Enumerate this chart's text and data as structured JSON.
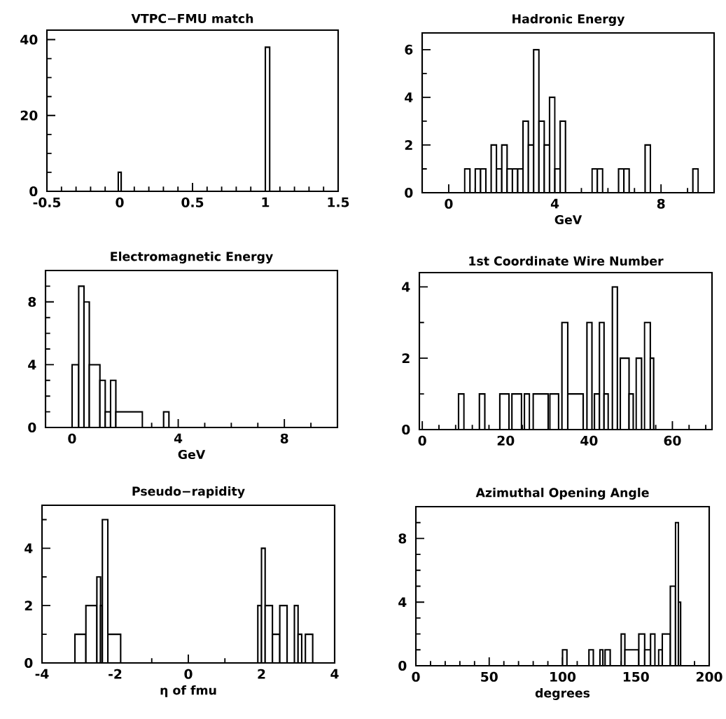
{
  "chart_data": [
    {
      "type": "histogram",
      "title": "VTPC−FMU match",
      "color": "#000000",
      "bins": [
        -0.01,
        0.01,
        1.0,
        1.03
      ],
      "values": [
        5,
        0,
        38
      ],
      "xlim": [
        -0.5,
        1.5
      ],
      "ylim": [
        0,
        42.5
      ],
      "xticks": [
        -0.5,
        {
          "value": -0.4,
          "label": null
        },
        {
          "value": -0.3,
          "label": null
        },
        {
          "value": -0.2,
          "label": null
        },
        {
          "value": -0.1,
          "label": null
        },
        0,
        {
          "value": 0.1,
          "label": null
        },
        {
          "value": 0.2,
          "label": null
        },
        {
          "value": 0.3,
          "label": null
        },
        {
          "value": 0.4,
          "label": null
        },
        0.5,
        {
          "value": 0.6,
          "label": null
        },
        {
          "value": 0.7,
          "label": null
        },
        {
          "value": 0.8,
          "label": null
        },
        {
          "value": 0.9,
          "label": null
        },
        1,
        {
          "value": 1.1,
          "label": null
        },
        {
          "value": 1.2,
          "label": null
        },
        {
          "value": 1.3,
          "label": null
        },
        {
          "value": 1.4,
          "label": null
        },
        1.5
      ],
      "yticks": [
        0,
        {
          "value": 5,
          "label": null
        },
        {
          "value": 10,
          "label": null
        },
        {
          "value": 15,
          "label": null
        },
        20,
        {
          "value": 25,
          "label": null
        },
        {
          "value": 30,
          "label": null
        },
        {
          "value": 35,
          "label": null
        },
        40
      ]
    },
    {
      "type": "histogram",
      "title": "Hadronic Energy",
      "xlabel": "GeV",
      "color": "#000000",
      "bins": [
        0.6,
        0.8,
        1.0,
        1.2,
        1.4,
        1.6,
        1.8,
        2.0,
        2.2,
        2.4,
        2.6,
        2.8,
        3.0,
        3.2,
        3.4,
        3.6,
        3.8,
        4.0,
        4.2,
        4.4,
        5.4,
        5.6,
        5.8,
        6.4,
        6.6,
        6.8,
        7.4,
        7.6,
        9.2,
        9.4
      ],
      "values": [
        1,
        0,
        1,
        1,
        0,
        2,
        1,
        2,
        1,
        1,
        1,
        3,
        2,
        6,
        3,
        2,
        4,
        1,
        3,
        0,
        1,
        1,
        0,
        1,
        1,
        0,
        2,
        0,
        1
      ],
      "xlim": [
        -1,
        10
      ],
      "ylim": [
        0,
        6.7
      ],
      "xticks": [
        0,
        {
          "value": 1,
          "label": null
        },
        {
          "value": 2,
          "label": null
        },
        {
          "value": 3,
          "label": null
        },
        4,
        {
          "value": 5,
          "label": null
        },
        {
          "value": 6,
          "label": null
        },
        {
          "value": 7,
          "label": null
        },
        8,
        {
          "value": 9,
          "label": null
        }
      ],
      "yticks": [
        0,
        {
          "value": 1,
          "label": null
        },
        2,
        {
          "value": 3,
          "label": null
        },
        4,
        {
          "value": 5,
          "label": null
        },
        6
      ]
    },
    {
      "type": "histogram",
      "title": "Electromagnetic Energy",
      "xlabel": "GeV",
      "color": "#000000",
      "bins": [
        0,
        0.25,
        0.45,
        0.65,
        1.05,
        1.25,
        1.45,
        1.65,
        2.65,
        3.45,
        3.65
      ],
      "values": [
        4,
        9,
        8,
        4,
        3,
        1,
        3,
        1,
        0,
        1
      ],
      "xlim": [
        -1,
        10
      ],
      "ylim": [
        0,
        10
      ],
      "xticks": [
        0,
        {
          "value": 1,
          "label": null
        },
        {
          "value": 2,
          "label": null
        },
        {
          "value": 3,
          "label": null
        },
        4,
        {
          "value": 5,
          "label": null
        },
        {
          "value": 6,
          "label": null
        },
        {
          "value": 7,
          "label": null
        },
        8,
        {
          "value": 9,
          "label": null
        }
      ],
      "yticks": [
        0,
        {
          "value": 1,
          "label": null
        },
        {
          "value": 2,
          "label": null
        },
        {
          "value": 3,
          "label": null
        },
        4,
        {
          "value": 5,
          "label": null
        },
        {
          "value": 6,
          "label": null
        },
        {
          "value": 7,
          "label": null
        },
        8,
        {
          "value": 9,
          "label": null
        }
      ]
    },
    {
      "type": "histogram",
      "title": "1st Coordinate Wire Number",
      "color": "#000000",
      "bins": [
        8.7,
        10.0,
        13.7,
        15.0,
        18.6,
        20.8,
        21.5,
        23.8,
        24.5,
        25.7,
        26.6,
        30.2,
        30.6,
        32.7,
        33.5,
        34.9,
        38.6,
        39.5,
        40.7,
        41.3,
        42.5,
        43.6,
        44.6,
        45.6,
        46.8,
        47.5,
        49.6,
        50.6,
        51.3,
        52.6,
        53.3,
        54.7,
        55.5
      ],
      "values": [
        1,
        0,
        1,
        0,
        1,
        0,
        1,
        0,
        1,
        0,
        1,
        0,
        1,
        0,
        3,
        1,
        0,
        3,
        0,
        1,
        3,
        1,
        0,
        4,
        0,
        2,
        1,
        0,
        2,
        0,
        3,
        2
      ],
      "xlim": [
        -0.7,
        69.5
      ],
      "ylim": [
        0,
        4.4
      ],
      "xticks": [
        0,
        {
          "value": 4,
          "label": null
        },
        {
          "value": 8,
          "label": null
        },
        {
          "value": 12,
          "label": null
        },
        {
          "value": 16,
          "label": null
        },
        20,
        {
          "value": 24,
          "label": null
        },
        {
          "value": 28,
          "label": null
        },
        {
          "value": 32,
          "label": null
        },
        {
          "value": 36,
          "label": null
        },
        40,
        {
          "value": 44,
          "label": null
        },
        {
          "value": 48,
          "label": null
        },
        {
          "value": 52,
          "label": null
        },
        {
          "value": 56,
          "label": null
        },
        60,
        {
          "value": 64,
          "label": null
        },
        {
          "value": 68,
          "label": null
        }
      ],
      "yticks": [
        0,
        {
          "value": 1,
          "label": null
        },
        2,
        {
          "value": 3,
          "label": null
        },
        4
      ]
    },
    {
      "type": "histogram",
      "title": "Pseudo−rapidity",
      "xlabel": "η of fmu",
      "color": "#000000",
      "bins": [
        -3.1,
        -2.8,
        -2.5,
        -2.4,
        -2.35,
        -2.2,
        -1.85,
        1.9,
        2.0,
        2.1,
        2.3,
        2.5,
        2.7,
        2.9,
        3.0,
        3.1,
        3.2,
        3.4
      ],
      "values": [
        1,
        2,
        3,
        2,
        5,
        1,
        0,
        2,
        4,
        2,
        1,
        2,
        0,
        2,
        1,
        0,
        1
      ],
      "xlim": [
        -4,
        4
      ],
      "ylim": [
        0,
        5.5
      ],
      "xticks": [
        -4,
        {
          "value": -3,
          "label": null
        },
        -2,
        {
          "value": -1,
          "label": null
        },
        0,
        {
          "value": 1,
          "label": null
        },
        2,
        {
          "value": 3,
          "label": null
        },
        4
      ],
      "yticks": [
        0,
        {
          "value": 1,
          "label": null
        },
        2,
        {
          "value": 3,
          "label": null
        },
        4,
        {
          "value": 5,
          "label": null
        }
      ]
    },
    {
      "type": "histogram",
      "title": "Azimuthal Opening Angle",
      "xlabel": "degrees",
      "color": "#000000",
      "bins": [
        100,
        103,
        118,
        121,
        125.5,
        127.5,
        129,
        132.5,
        140,
        142.5,
        152,
        156,
        160,
        163,
        165.5,
        168,
        173.5,
        177,
        179,
        180.5
      ],
      "values": [
        1,
        0,
        1,
        0,
        1,
        0,
        1,
        0,
        2,
        1,
        2,
        1,
        2,
        0,
        1,
        2,
        5,
        9,
        4
      ],
      "xlim": [
        0,
        200
      ],
      "ylim": [
        0,
        10
      ],
      "xticks": [
        0,
        {
          "value": 10,
          "label": null
        },
        {
          "value": 20,
          "label": null
        },
        {
          "value": 30,
          "label": null
        },
        {
          "value": 40,
          "label": null
        },
        50,
        {
          "value": 60,
          "label": null
        },
        {
          "value": 70,
          "label": null
        },
        {
          "value": 80,
          "label": null
        },
        {
          "value": 90,
          "label": null
        },
        100,
        {
          "value": 110,
          "label": null
        },
        {
          "value": 120,
          "label": null
        },
        {
          "value": 130,
          "label": null
        },
        {
          "value": 140,
          "label": null
        },
        150,
        {
          "value": 160,
          "label": null
        },
        {
          "value": 170,
          "label": null
        },
        {
          "value": 180,
          "label": null
        },
        {
          "value": 190,
          "label": null
        },
        200
      ],
      "yticks": [
        0,
        {
          "value": 1,
          "label": null
        },
        {
          "value": 2,
          "label": null
        },
        {
          "value": 3,
          "label": null
        },
        4,
        {
          "value": 5,
          "label": null
        },
        {
          "value": 6,
          "label": null
        },
        {
          "value": 7,
          "label": null
        },
        8,
        {
          "value": 9,
          "label": null
        }
      ]
    }
  ]
}
